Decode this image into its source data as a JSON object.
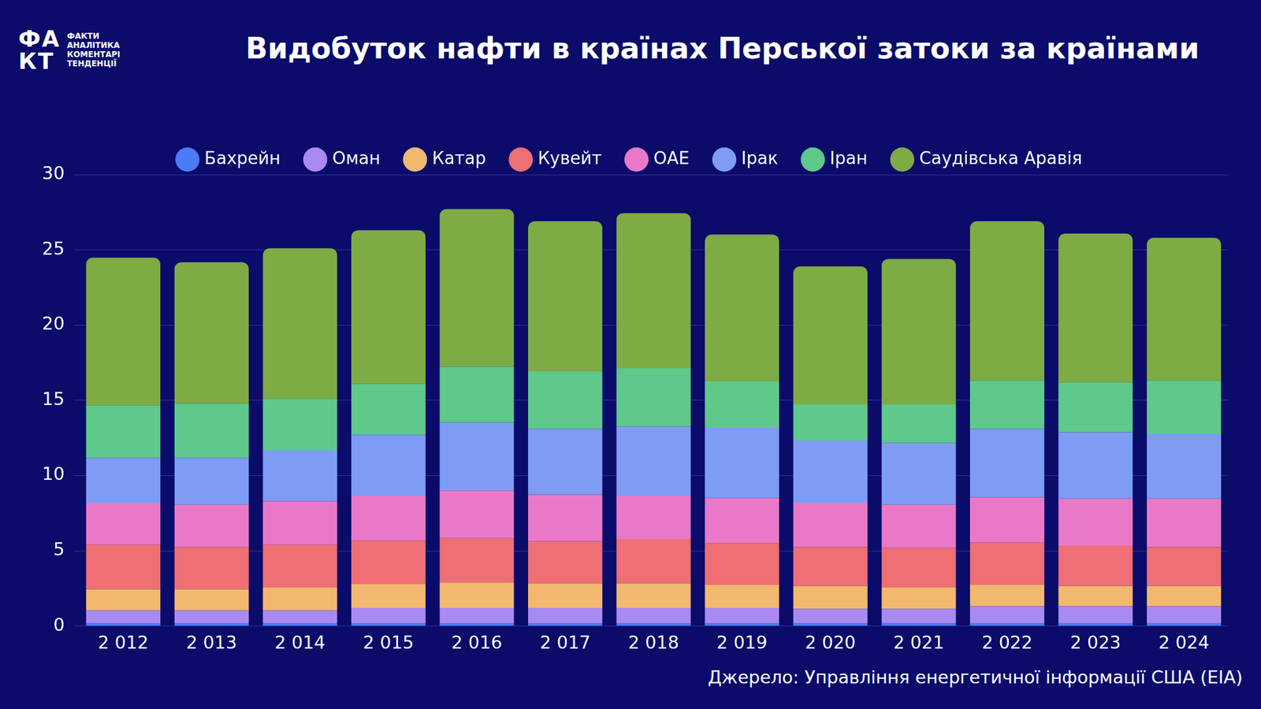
{
  "chart_data": {
    "type": "bar",
    "title": "Видобуток нафти в країнах Перської затоки за країнами",
    "logo": {
      "mark": [
        "ФА",
        "КТ"
      ],
      "lines": [
        "ФАКТИ",
        "АНАЛІТИКА",
        "КОМЕНТАРІ",
        "ТЕНДЕНЦІЇ"
      ]
    },
    "source": "Джерело: Управління енергетичної інформації США (EIA)",
    "categories": [
      "2 012",
      "2 013",
      "2 014",
      "2 015",
      "2 016",
      "2 017",
      "2 018",
      "2 019",
      "2 020",
      "2 021",
      "2 022",
      "2 023",
      "2 024"
    ],
    "series": [
      {
        "name": "Бахрейн",
        "color": "#4a7cf5",
        "values": [
          0.2,
          0.2,
          0.2,
          0.2,
          0.2,
          0.2,
          0.2,
          0.2,
          0.2,
          0.2,
          0.2,
          0.2,
          0.2
        ]
      },
      {
        "name": "Оман",
        "color": "#a98af0",
        "values": [
          0.84,
          0.84,
          0.84,
          1.0,
          1.0,
          1.0,
          1.0,
          1.0,
          0.95,
          0.95,
          1.11,
          1.11,
          1.11
        ]
      },
      {
        "name": "Катар",
        "color": "#f2b870",
        "values": [
          1.41,
          1.41,
          1.52,
          1.58,
          1.69,
          1.64,
          1.64,
          1.53,
          1.52,
          1.41,
          1.42,
          1.36,
          1.36
        ]
      },
      {
        "name": "Кувейт",
        "color": "#ee6f74",
        "values": [
          2.95,
          2.79,
          2.84,
          2.89,
          2.95,
          2.78,
          2.94,
          2.78,
          2.57,
          2.62,
          2.83,
          2.68,
          2.57
        ]
      },
      {
        "name": "ОАЕ",
        "color": "#e979c8",
        "values": [
          2.78,
          2.83,
          2.89,
          3.0,
          3.16,
          3.11,
          2.89,
          3.0,
          2.94,
          2.89,
          3.0,
          3.11,
          3.22
        ]
      },
      {
        "name": "Ірак",
        "color": "#7e9cf3",
        "values": [
          3.0,
          3.11,
          3.38,
          4.04,
          4.53,
          4.36,
          4.59,
          4.69,
          4.15,
          4.1,
          4.53,
          4.41,
          4.31
        ]
      },
      {
        "name": "Іран",
        "color": "#5ec98a",
        "values": [
          3.5,
          3.6,
          3.44,
          3.38,
          3.71,
          3.82,
          3.87,
          3.06,
          2.4,
          2.56,
          3.22,
          3.33,
          3.54
        ]
      },
      {
        "name": "Саудівська Аравія",
        "color": "#7fab45",
        "values": [
          9.8,
          9.39,
          9.99,
          10.21,
          10.47,
          9.99,
          10.31,
          9.76,
          9.17,
          9.66,
          10.59,
          9.88,
          9.49
        ]
      }
    ],
    "stacked": true,
    "ylim": [
      0,
      30
    ],
    "yticks": [
      0,
      5,
      10,
      15,
      20,
      25,
      30
    ],
    "grid": true,
    "legend": "top",
    "data_labels": false
  }
}
